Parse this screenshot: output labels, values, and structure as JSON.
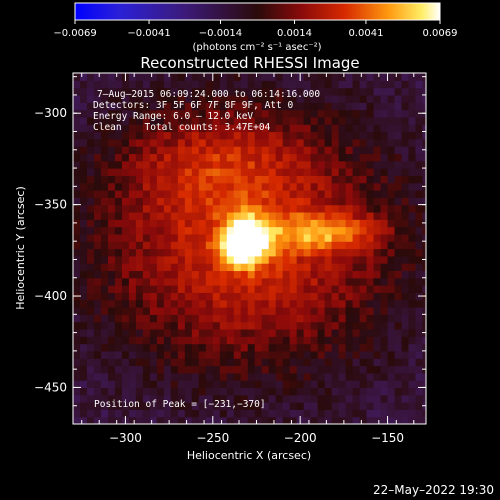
{
  "colorbar": {
    "tick_labels": [
      "−0.0069",
      "−0.0041",
      "−0.0014",
      "0.0014",
      "0.0041",
      "0.0069"
    ],
    "tick_values": [
      -0.0069,
      -0.0041,
      -0.0014,
      0.0014,
      0.0041,
      0.0069
    ],
    "range": [
      -0.0069,
      0.0069
    ],
    "unit_label": "(photons cm⁻² s⁻¹ asec⁻²)"
  },
  "chart_data": {
    "type": "heatmap",
    "title": "Reconstructed RHESSI Image",
    "xlabel": "Heliocentric X (arcsec)",
    "ylabel": "Heliocentric Y (arcsec)",
    "xlim": [
      -330,
      -128
    ],
    "ylim": [
      -470,
      -278
    ],
    "x_ticks": [
      -300,
      -250,
      -200,
      -150
    ],
    "x_tick_labels": [
      "−300",
      "−250",
      "−200",
      "−150"
    ],
    "y_ticks": [
      -300,
      -350,
      -400,
      -450
    ],
    "y_tick_labels": [
      "−300",
      "−350",
      "−400",
      "−450"
    ],
    "colormap": "red-temperature",
    "peak": {
      "x": -231,
      "y": -370,
      "value": 0.0069
    },
    "annotations": [
      "7–Aug–2015 06:09:24.000 to 06:14:16.000",
      "Detectors: 3F 5F 6F 7F 8F 9F, Att 0",
      "Energy Range: 6.0 – 12.0 keV",
      "Clean    Total counts: 3.47E+04"
    ],
    "peak_label": "Position of Peak = [−231,−370]"
  },
  "footer": {
    "timestamp": "22–May–2022 19:30"
  },
  "colors": {
    "background": "#000000",
    "axes": "#ffffff"
  }
}
